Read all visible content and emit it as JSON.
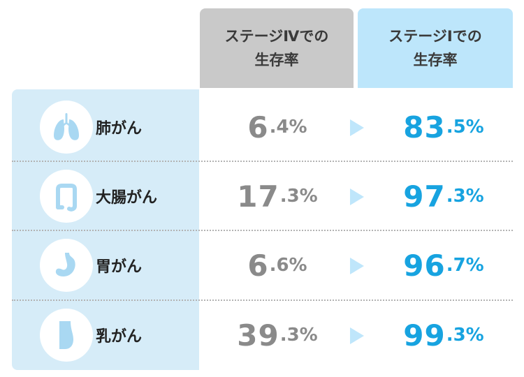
{
  "headers": {
    "stage_iv": "ステージⅣでの\n生存率",
    "stage_i": "ステージⅠでの\n生存率"
  },
  "rows": [
    {
      "label": "肺がん",
      "icon": "lungs-icon",
      "stage_iv": {
        "num": "6",
        "dec": ".4%"
      },
      "stage_i": {
        "num": "83",
        "dec": ".5%"
      }
    },
    {
      "label": "大腸がん",
      "icon": "intestine-icon",
      "stage_iv": {
        "num": "17",
        "dec": ".3%"
      },
      "stage_i": {
        "num": "97",
        "dec": ".3%"
      }
    },
    {
      "label": "胃がん",
      "icon": "stomach-icon",
      "stage_iv": {
        "num": "6",
        "dec": ".6%"
      },
      "stage_i": {
        "num": "96",
        "dec": ".7%"
      }
    },
    {
      "label": "乳がん",
      "icon": "breast-icon",
      "stage_iv": {
        "num": "39",
        "dec": ".3%"
      },
      "stage_i": {
        "num": "99",
        "dec": ".3%"
      }
    }
  ],
  "colors": {
    "stage_iv_header": "#c9c9c9",
    "stage_i_header": "#bde6fb",
    "label_panel": "#d6ecf8",
    "stage_iv_value": "#8a8a8a",
    "stage_i_value": "#17a3e0",
    "arrow": "#bfe6fb",
    "icon_fill": "#a9d8f2"
  }
}
